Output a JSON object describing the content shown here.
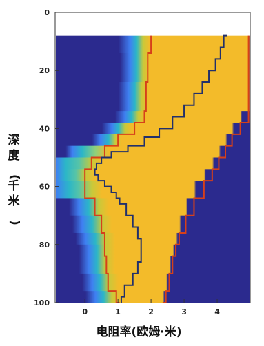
{
  "chart_data": {
    "type": "heatmap",
    "title": "",
    "xlabel": "电阻率(欧姆·米)",
    "ylabel": "深度(千米)",
    "xlim": [
      -0.9,
      5.0
    ],
    "ylim": [
      0,
      100
    ],
    "y_reversed": true,
    "data_top": 8,
    "x_ticks": [
      0,
      1,
      2,
      3,
      4
    ],
    "y_ticks": [
      0,
      20,
      40,
      60,
      80,
      100
    ],
    "colors": {
      "background": "#2b2a8e",
      "plateau": "#f3bb2a",
      "bound_line": "#d6401a",
      "model_line": "#22306b"
    },
    "layers": [
      {
        "top": 8,
        "bottom": 14,
        "gradient": [
          [
            -0.9,
            "#2b2a8e"
          ],
          [
            1.0,
            "#2b2a8e"
          ],
          [
            1.35,
            "#3f7ff2"
          ],
          [
            1.55,
            "#2bb6c8"
          ],
          [
            1.75,
            "#c8c93a"
          ],
          [
            1.95,
            "#f3bb2a"
          ],
          [
            4.95,
            "#f3bb2a"
          ],
          [
            5.0,
            "#2b2a8e"
          ]
        ]
      },
      {
        "top": 14,
        "bottom": 24,
        "gradient": [
          [
            -0.9,
            "#2b2a8e"
          ],
          [
            1.05,
            "#2b2a8e"
          ],
          [
            1.35,
            "#3f7ff2"
          ],
          [
            1.55,
            "#2bb6c8"
          ],
          [
            1.75,
            "#c8c93a"
          ],
          [
            1.95,
            "#f3bb2a"
          ],
          [
            4.95,
            "#f3bb2a"
          ],
          [
            5.0,
            "#2b2a8e"
          ]
        ]
      },
      {
        "top": 24,
        "bottom": 34,
        "gradient": [
          [
            -0.9,
            "#2b2a8e"
          ],
          [
            1.0,
            "#2b2a8e"
          ],
          [
            1.3,
            "#3f7ff2"
          ],
          [
            1.5,
            "#2bb6c8"
          ],
          [
            1.7,
            "#c8c93a"
          ],
          [
            1.9,
            "#f3bb2a"
          ],
          [
            4.95,
            "#f3bb2a"
          ],
          [
            5.0,
            "#2b2a8e"
          ]
        ]
      },
      {
        "top": 34,
        "bottom": 38,
        "gradient": [
          [
            -0.9,
            "#2b2a8e"
          ],
          [
            0.9,
            "#2b2a8e"
          ],
          [
            1.2,
            "#3f7ff2"
          ],
          [
            1.4,
            "#2bb6c8"
          ],
          [
            1.6,
            "#c8c93a"
          ],
          [
            1.8,
            "#f3bb2a"
          ],
          [
            4.7,
            "#f3bb2a"
          ],
          [
            4.75,
            "#2b2a8e"
          ]
        ]
      },
      {
        "top": 38,
        "bottom": 42,
        "gradient": [
          [
            -0.9,
            "#2b2a8e"
          ],
          [
            0.5,
            "#2b2a8e"
          ],
          [
            0.8,
            "#3f7ff2"
          ],
          [
            1.0,
            "#2bb6c8"
          ],
          [
            1.2,
            "#c8c93a"
          ],
          [
            1.4,
            "#f3bb2a"
          ],
          [
            4.45,
            "#f3bb2a"
          ],
          [
            4.5,
            "#2b2a8e"
          ]
        ]
      },
      {
        "top": 42,
        "bottom": 46,
        "gradient": [
          [
            -0.9,
            "#2b2a8e"
          ],
          [
            0.2,
            "#2b2a8e"
          ],
          [
            0.45,
            "#3f7ff2"
          ],
          [
            0.7,
            "#2bb6c8"
          ],
          [
            0.9,
            "#c8c93a"
          ],
          [
            1.1,
            "#f3bb2a"
          ],
          [
            4.25,
            "#f3bb2a"
          ],
          [
            4.3,
            "#2b2a8e"
          ]
        ]
      },
      {
        "top": 46,
        "bottom": 50,
        "gradient": [
          [
            -0.9,
            "#2b2a8e"
          ],
          [
            -0.6,
            "#2b2a8e"
          ],
          [
            -0.4,
            "#3f7ff2"
          ],
          [
            -0.1,
            "#2bb6c8"
          ],
          [
            0.3,
            "#8fd07a"
          ],
          [
            0.7,
            "#f3bb2a"
          ],
          [
            4.05,
            "#f3bb2a"
          ],
          [
            4.1,
            "#2b2a8e"
          ]
        ]
      },
      {
        "top": 50,
        "bottom": 54,
        "gradient": [
          [
            -0.9,
            "#3f7ff2"
          ],
          [
            -0.6,
            "#2bb6c8"
          ],
          [
            -0.2,
            "#56c4a8"
          ],
          [
            0.2,
            "#c8c93a"
          ],
          [
            0.5,
            "#f3bb2a"
          ],
          [
            3.85,
            "#f3bb2a"
          ],
          [
            3.9,
            "#2b2a8e"
          ]
        ]
      },
      {
        "top": 54,
        "bottom": 58,
        "gradient": [
          [
            -0.9,
            "#3f7ff2"
          ],
          [
            -0.6,
            "#2bb6c8"
          ],
          [
            -0.3,
            "#56c4a8"
          ],
          [
            0.0,
            "#c8c93a"
          ],
          [
            0.3,
            "#f3bb2a"
          ],
          [
            3.6,
            "#f3bb2a"
          ],
          [
            3.65,
            "#2b2a8e"
          ]
        ]
      },
      {
        "top": 58,
        "bottom": 64,
        "gradient": [
          [
            -0.9,
            "#3f7ff2"
          ],
          [
            -0.5,
            "#2bb6c8"
          ],
          [
            -0.2,
            "#56c4a8"
          ],
          [
            0.2,
            "#c8c93a"
          ],
          [
            0.5,
            "#f3bb2a"
          ],
          [
            3.3,
            "#f3bb2a"
          ],
          [
            3.35,
            "#2b2a8e"
          ]
        ]
      },
      {
        "top": 64,
        "bottom": 70,
        "gradient": [
          [
            -0.9,
            "#2b2a8e"
          ],
          [
            -0.5,
            "#2b2a8e"
          ],
          [
            -0.2,
            "#3f7ff2"
          ],
          [
            0.1,
            "#2bb6c8"
          ],
          [
            0.4,
            "#c8c93a"
          ],
          [
            0.7,
            "#f3bb2a"
          ],
          [
            3.05,
            "#f3bb2a"
          ],
          [
            3.1,
            "#2b2a8e"
          ]
        ]
      },
      {
        "top": 70,
        "bottom": 76,
        "gradient": [
          [
            -0.9,
            "#2b2a8e"
          ],
          [
            -0.4,
            "#2b2a8e"
          ],
          [
            -0.1,
            "#3f7ff2"
          ],
          [
            0.2,
            "#2bb6c8"
          ],
          [
            0.5,
            "#c8c93a"
          ],
          [
            0.8,
            "#f3bb2a"
          ],
          [
            2.85,
            "#f3bb2a"
          ],
          [
            2.9,
            "#2b2a8e"
          ]
        ]
      },
      {
        "top": 76,
        "bottom": 80,
        "gradient": [
          [
            -0.9,
            "#2b2a8e"
          ],
          [
            -0.3,
            "#2b2a8e"
          ],
          [
            0.0,
            "#3f7ff2"
          ],
          [
            0.3,
            "#2bb6c8"
          ],
          [
            0.6,
            "#c8c93a"
          ],
          [
            0.9,
            "#f3bb2a"
          ],
          [
            2.75,
            "#f3bb2a"
          ],
          [
            2.8,
            "#2b2a8e"
          ]
        ]
      },
      {
        "top": 80,
        "bottom": 84,
        "gradient": [
          [
            -0.9,
            "#2b2a8e"
          ],
          [
            -0.2,
            "#2b2a8e"
          ],
          [
            0.1,
            "#3f7ff2"
          ],
          [
            0.35,
            "#2bb6c8"
          ],
          [
            0.6,
            "#c8c93a"
          ],
          [
            0.9,
            "#f3bb2a"
          ],
          [
            2.65,
            "#f3bb2a"
          ],
          [
            2.7,
            "#2b2a8e"
          ]
        ]
      },
      {
        "top": 84,
        "bottom": 90,
        "gradient": [
          [
            -0.9,
            "#2b2a8e"
          ],
          [
            -0.2,
            "#2b2a8e"
          ],
          [
            0.1,
            "#3f7ff2"
          ],
          [
            0.35,
            "#2bb6c8"
          ],
          [
            0.6,
            "#c8c93a"
          ],
          [
            0.9,
            "#f3bb2a"
          ],
          [
            2.55,
            "#f3bb2a"
          ],
          [
            2.6,
            "#2b2a8e"
          ]
        ]
      },
      {
        "top": 90,
        "bottom": 96,
        "gradient": [
          [
            -0.9,
            "#2b2a8e"
          ],
          [
            -0.1,
            "#2b2a8e"
          ],
          [
            0.2,
            "#3f7ff2"
          ],
          [
            0.45,
            "#2bb6c8"
          ],
          [
            0.7,
            "#c8c93a"
          ],
          [
            1.0,
            "#f3bb2a"
          ],
          [
            2.45,
            "#f3bb2a"
          ],
          [
            2.5,
            "#2b2a8e"
          ]
        ]
      },
      {
        "top": 96,
        "bottom": 100,
        "gradient": [
          [
            -0.9,
            "#2b2a8e"
          ],
          [
            0.0,
            "#2b2a8e"
          ],
          [
            0.3,
            "#3f7ff2"
          ],
          [
            0.55,
            "#2bb6c8"
          ],
          [
            0.8,
            "#c8c93a"
          ],
          [
            1.1,
            "#f3bb2a"
          ],
          [
            2.35,
            "#f3bb2a"
          ],
          [
            2.4,
            "#2b2a8e"
          ]
        ]
      }
    ],
    "series": [
      {
        "style": "bound",
        "points": [
          [
            2.0,
            8
          ],
          [
            1.9,
            14
          ],
          [
            1.85,
            24
          ],
          [
            1.8,
            34
          ],
          [
            1.5,
            38
          ],
          [
            1.0,
            42
          ],
          [
            0.6,
            46
          ],
          [
            0.2,
            50
          ],
          [
            0.0,
            54
          ],
          [
            0.0,
            58
          ],
          [
            0.3,
            64
          ],
          [
            0.5,
            70
          ],
          [
            0.6,
            76
          ],
          [
            0.65,
            84
          ],
          [
            0.7,
            90
          ],
          [
            0.95,
            96
          ],
          [
            1.05,
            100
          ]
        ]
      },
      {
        "style": "bound",
        "points": [
          [
            4.95,
            8
          ],
          [
            4.95,
            34
          ],
          [
            4.7,
            38
          ],
          [
            4.45,
            42
          ],
          [
            4.25,
            46
          ],
          [
            4.05,
            50
          ],
          [
            3.85,
            54
          ],
          [
            3.6,
            58
          ],
          [
            3.3,
            64
          ],
          [
            3.05,
            70
          ],
          [
            2.85,
            76
          ],
          [
            2.75,
            80
          ],
          [
            2.65,
            84
          ],
          [
            2.55,
            90
          ],
          [
            2.45,
            96
          ],
          [
            2.35,
            100
          ]
        ]
      },
      {
        "style": "model",
        "points": [
          [
            4.3,
            8
          ],
          [
            4.2,
            12
          ],
          [
            4.1,
            16
          ],
          [
            3.95,
            20
          ],
          [
            3.75,
            24
          ],
          [
            3.55,
            28
          ],
          [
            3.3,
            32
          ],
          [
            3.0,
            36
          ],
          [
            2.65,
            40
          ],
          [
            2.25,
            43
          ],
          [
            1.8,
            46
          ],
          [
            1.3,
            48
          ],
          [
            0.8,
            50
          ],
          [
            0.5,
            52
          ],
          [
            0.35,
            54
          ],
          [
            0.3,
            56
          ],
          [
            0.4,
            58
          ],
          [
            0.6,
            60
          ],
          [
            0.8,
            62
          ],
          [
            0.95,
            64
          ],
          [
            1.05,
            66
          ],
          [
            1.25,
            70
          ],
          [
            1.45,
            74
          ],
          [
            1.6,
            78
          ],
          [
            1.7,
            82
          ],
          [
            1.7,
            86
          ],
          [
            1.6,
            90
          ],
          [
            1.45,
            94
          ],
          [
            1.2,
            98
          ],
          [
            1.1,
            100
          ]
        ]
      }
    ]
  }
}
